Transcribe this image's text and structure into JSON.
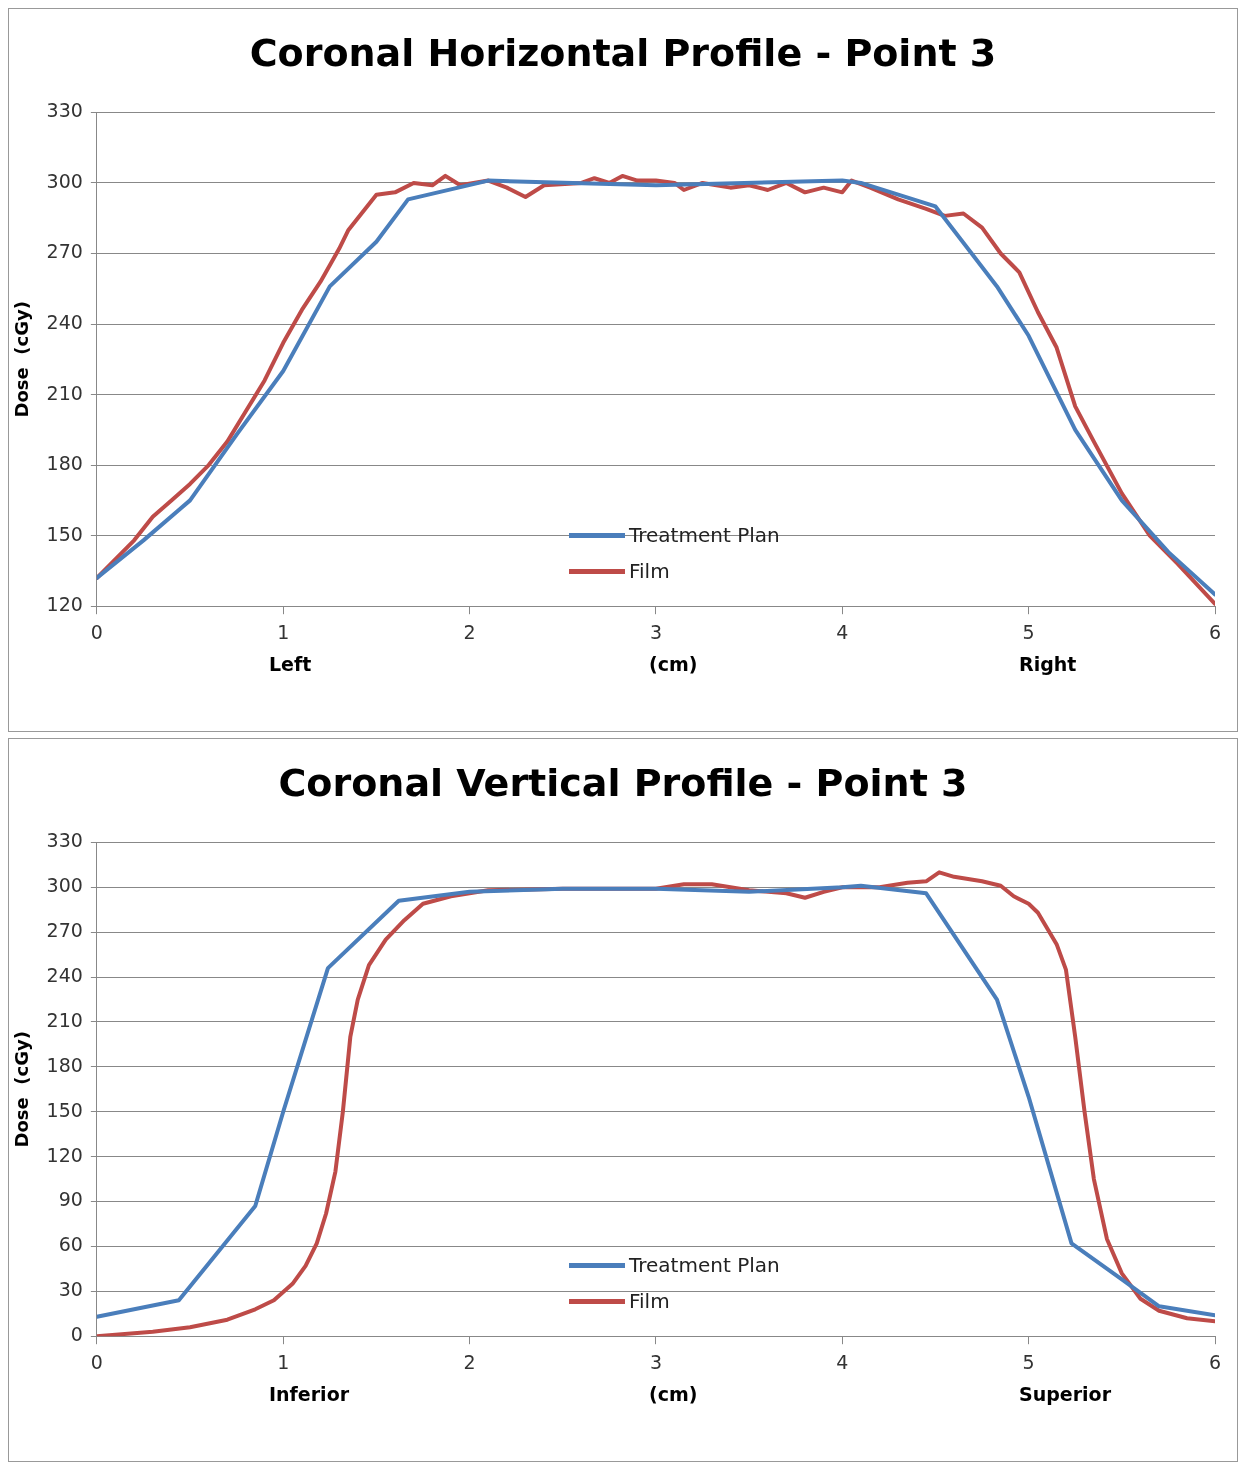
{
  "chart_data": [
    {
      "type": "line",
      "title": "Coronal Horizontal Profile - Point 3",
      "xlabel": "(cm)",
      "ylabel": "Dose  (cGy)",
      "annotations": [
        "Left",
        "Right"
      ],
      "xlim": [
        0,
        6
      ],
      "xticks": [
        0,
        1,
        2,
        3,
        4,
        5,
        6
      ],
      "ylim": [
        120,
        330
      ],
      "yticks": [
        120,
        150,
        180,
        210,
        240,
        270,
        300,
        330
      ],
      "grid": "y",
      "legend": "bottom",
      "marker": "none",
      "line_style": "solid",
      "series": [
        {
          "name": "Treatment Plan",
          "color": "#4a7ebb",
          "x": [
            0,
            0.25,
            0.5,
            0.75,
            1,
            1.25,
            1.5,
            1.67,
            2.1,
            3,
            4,
            4.1,
            4.5,
            4.83,
            5,
            5.25,
            5.5,
            5.75,
            6
          ],
          "values": [
            132,
            148,
            165,
            193,
            220,
            256,
            275,
            293,
            301,
            299,
            301,
            300,
            290,
            256,
            235,
            195,
            165,
            143,
            125
          ]
        },
        {
          "name": "Film",
          "color": "#be4b48",
          "x": [
            0,
            0.1,
            0.2,
            0.3,
            0.4,
            0.5,
            0.6,
            0.7,
            0.8,
            0.9,
            1.0,
            1.1,
            1.2,
            1.3,
            1.35,
            1.45,
            1.5,
            1.6,
            1.7,
            1.8,
            1.87,
            1.95,
            2.1,
            2.2,
            2.3,
            2.4,
            2.6,
            2.67,
            2.75,
            2.82,
            2.9,
            3.0,
            3.1,
            3.15,
            3.25,
            3.4,
            3.5,
            3.6,
            3.7,
            3.8,
            3.9,
            4.0,
            4.05,
            4.15,
            4.3,
            4.45,
            4.55,
            4.65,
            4.75,
            4.85,
            4.95,
            5.05,
            5.15,
            5.25,
            5.35,
            5.5,
            5.65,
            5.8,
            6
          ],
          "values": [
            132,
            140,
            148,
            158,
            165,
            172,
            180,
            190,
            203,
            216,
            232,
            246,
            258,
            272,
            280,
            290,
            295,
            296,
            300,
            299,
            303,
            299,
            301,
            298,
            294,
            299,
            300,
            302,
            300,
            303,
            301,
            301,
            300,
            297,
            300,
            298,
            299,
            297,
            300,
            296,
            298,
            296,
            301,
            298,
            293,
            289,
            286,
            287,
            281,
            270,
            262,
            245,
            230,
            205,
            190,
            168,
            150,
            138,
            121
          ]
        }
      ]
    },
    {
      "type": "line",
      "title": "Coronal Vertical Profile - Point 3",
      "xlabel": "(cm)",
      "ylabel": "Dose  (cGy)",
      "annotations": [
        "Inferior",
        "Superior"
      ],
      "xlim": [
        0,
        6
      ],
      "xticks": [
        0,
        1,
        2,
        3,
        4,
        5,
        6
      ],
      "ylim": [
        0,
        330
      ],
      "yticks": [
        0,
        30,
        60,
        90,
        120,
        150,
        180,
        210,
        240,
        270,
        300,
        330
      ],
      "grid": "y",
      "legend": "bottom",
      "marker": "none",
      "line_style": "solid",
      "series": [
        {
          "name": "Treatment Plan",
          "color": "#4a7ebb",
          "x": [
            0,
            0.44,
            0.85,
            1.0,
            1.24,
            1.62,
            2,
            2.5,
            3,
            3.5,
            4,
            4.1,
            4.45,
            4.83,
            5.0,
            5.23,
            5.5,
            5.7,
            6
          ],
          "values": [
            13,
            24,
            87,
            150,
            246,
            291,
            297,
            299,
            299,
            297,
            300,
            301,
            296,
            225,
            160,
            62,
            38,
            20,
            14
          ]
        },
        {
          "name": "Film",
          "color": "#be4b48",
          "x": [
            0,
            0.3,
            0.5,
            0.7,
            0.85,
            0.95,
            1.05,
            1.12,
            1.18,
            1.23,
            1.28,
            1.32,
            1.36,
            1.4,
            1.46,
            1.55,
            1.65,
            1.75,
            1.9,
            2.1,
            2.5,
            3,
            3.15,
            3.3,
            3.5,
            3.7,
            3.8,
            3.9,
            4.0,
            4.2,
            4.35,
            4.45,
            4.52,
            4.6,
            4.75,
            4.85,
            4.92,
            5.0,
            5.05,
            5.15,
            5.2,
            5.25,
            5.3,
            5.35,
            5.42,
            5.5,
            5.6,
            5.7,
            5.85,
            6
          ],
          "values": [
            0,
            3,
            6,
            11,
            18,
            24,
            35,
            47,
            62,
            82,
            110,
            150,
            200,
            225,
            248,
            265,
            278,
            289,
            294,
            298,
            299,
            299,
            302,
            302,
            298,
            296,
            293,
            297,
            300,
            300,
            303,
            304,
            310,
            307,
            304,
            301,
            294,
            289,
            283,
            262,
            245,
            200,
            150,
            105,
            65,
            42,
            25,
            17,
            12,
            10
          ]
        }
      ]
    }
  ]
}
